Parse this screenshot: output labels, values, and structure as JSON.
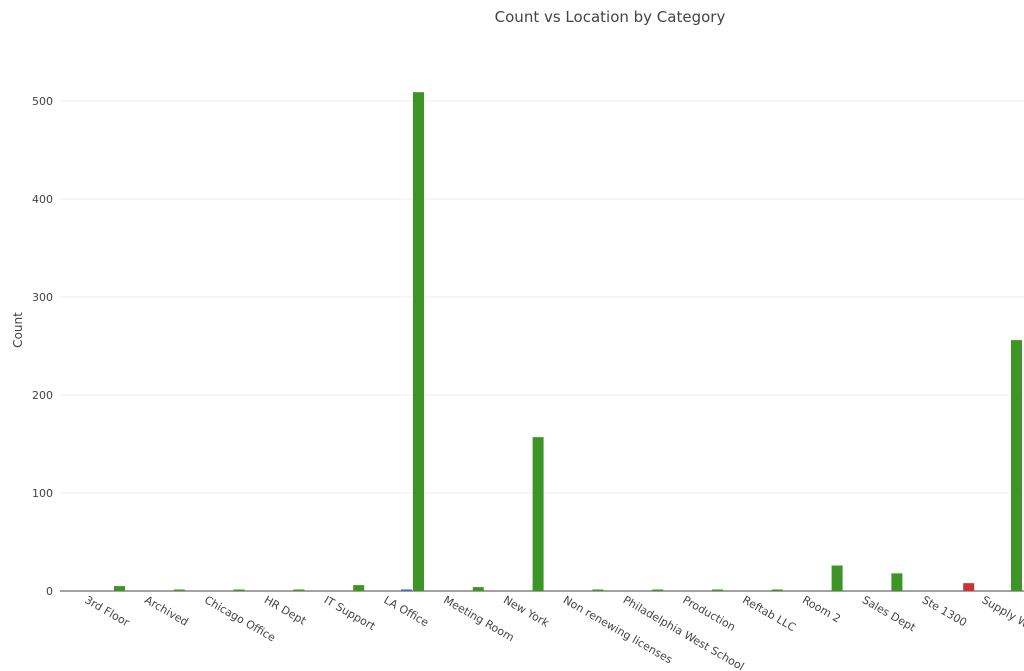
{
  "chart_data": {
    "type": "bar",
    "title": "Count vs Location by Category",
    "xlabel": "",
    "ylabel": "Count",
    "ylim": [
      0,
      520
    ],
    "yticks": [
      0,
      100,
      200,
      300,
      400,
      500
    ],
    "grid": true,
    "legend": "none",
    "categories": [
      "3rd Floor",
      "Archived",
      "Chicago Office",
      "HR Dept",
      "IT Support",
      "LA Office",
      "Meeting Room",
      "New York",
      "Non renewing licenses",
      "Philadelphia West School",
      "Production",
      "Reftab LLC",
      "Room 2",
      "Sales Dept",
      "Ste 1300",
      "Supply Wa"
    ],
    "series": [
      {
        "color": "#3d9525",
        "values": [
          5,
          1,
          1,
          1,
          6,
          509,
          4,
          157,
          1,
          1,
          1,
          1,
          26,
          18,
          0,
          256
        ]
      },
      {
        "color": "#3366cc",
        "values": [
          0,
          0,
          0,
          0,
          0,
          1,
          0,
          0,
          0,
          0,
          0,
          0,
          0,
          0,
          0,
          0
        ]
      },
      {
        "color": "#cc3333",
        "values": [
          0,
          0,
          0,
          0,
          0,
          0,
          0,
          0,
          0,
          0,
          0,
          0,
          0,
          0,
          8,
          0
        ]
      }
    ]
  }
}
